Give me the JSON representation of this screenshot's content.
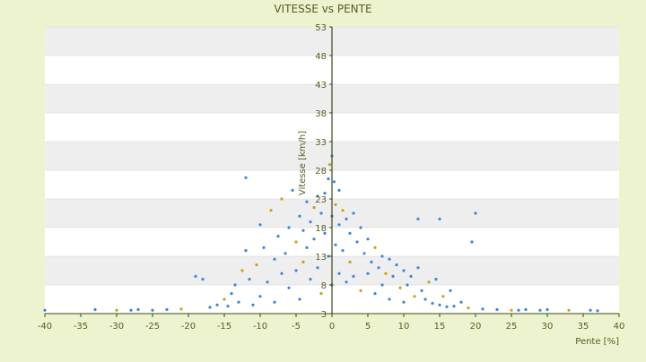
{
  "chart_data": {
    "type": "scatter",
    "title": "VITESSE vs PENTE",
    "xlabel": "Pente [%]",
    "ylabel": "Vitesse [km/h]",
    "xlim": [
      -40,
      40
    ],
    "ylim": [
      3,
      53
    ],
    "xticks": [
      -40,
      -35,
      -30,
      -25,
      -20,
      -15,
      -10,
      -5,
      0,
      5,
      10,
      15,
      20,
      25,
      30,
      35,
      40
    ],
    "yticks": [
      3,
      8,
      13,
      18,
      23,
      28,
      33,
      38,
      43,
      48,
      53
    ],
    "grid": "horizontal alternating bands",
    "legend": "none",
    "colors": {
      "page_background": "#eef3cf",
      "plot_background": "#ffffff",
      "band": "#eeeeee",
      "points_primary": "#3f87d6",
      "points_secondary": "#c8a21a",
      "axis": "#3b4a17",
      "text": "#5a5a20"
    },
    "series": [
      {
        "values_note": "",
        "points": [
          [
            -40,
            3.6
          ],
          [
            -33,
            3.7
          ],
          [
            -30,
            3.6
          ],
          [
            -28,
            3.6
          ],
          [
            -27,
            3.7
          ],
          [
            -25,
            3.6
          ],
          [
            -23,
            3.7
          ],
          [
            -21,
            3.8
          ],
          [
            -19,
            9.5
          ],
          [
            -18,
            9.0
          ],
          [
            -17,
            4.1
          ],
          [
            -16,
            4.5
          ],
          [
            -15,
            5.5
          ],
          [
            -14.5,
            4.3
          ],
          [
            -14,
            6.5
          ],
          [
            -13.5,
            8.0
          ],
          [
            -13,
            5.0
          ],
          [
            -12.5,
            10.5
          ],
          [
            -12,
            14.0
          ],
          [
            -12,
            26.7
          ],
          [
            -11.5,
            9.0
          ],
          [
            -11,
            4.5
          ],
          [
            -10.5,
            11.5
          ],
          [
            -10,
            18.5
          ],
          [
            -10,
            6.0
          ],
          [
            -9.5,
            14.5
          ],
          [
            -9,
            8.5
          ],
          [
            -8.5,
            21.0
          ],
          [
            -8,
            12.5
          ],
          [
            -8,
            5.0
          ],
          [
            -7.5,
            16.5
          ],
          [
            -7,
            10.0
          ],
          [
            -7,
            23.0
          ],
          [
            -6.5,
            13.5
          ],
          [
            -6,
            18.0
          ],
          [
            -6,
            7.5
          ],
          [
            -5.5,
            24.5
          ],
          [
            -5,
            15.5
          ],
          [
            -5,
            10.5
          ],
          [
            -4.5,
            20.0
          ],
          [
            -4.5,
            5.5
          ],
          [
            -4,
            17.5
          ],
          [
            -4,
            12.0
          ],
          [
            -3.5,
            22.5
          ],
          [
            -3.5,
            14.5
          ],
          [
            -3,
            19.0
          ],
          [
            -3,
            9.0
          ],
          [
            -2.5,
            21.5
          ],
          [
            -2.5,
            16.0
          ],
          [
            -2,
            23.5
          ],
          [
            -2,
            11.0
          ],
          [
            -1.5,
            20.5
          ],
          [
            -1.5,
            6.5
          ],
          [
            -1,
            24.0
          ],
          [
            -1,
            17.0
          ],
          [
            -0.5,
            26.5
          ],
          [
            -0.5,
            13.0
          ],
          [
            -0.3,
            29.0
          ],
          [
            0,
            30.5
          ],
          [
            0,
            20.0
          ],
          [
            0,
            8.0
          ],
          [
            0.3,
            26.0
          ],
          [
            0.5,
            22.0
          ],
          [
            0.5,
            15.0
          ],
          [
            1,
            24.5
          ],
          [
            1,
            18.5
          ],
          [
            1,
            10.0
          ],
          [
            1.5,
            21.0
          ],
          [
            1.5,
            14.0
          ],
          [
            2,
            19.5
          ],
          [
            2,
            8.5
          ],
          [
            2.5,
            17.0
          ],
          [
            2.5,
            12.0
          ],
          [
            3,
            20.5
          ],
          [
            3,
            9.5
          ],
          [
            3.5,
            15.5
          ],
          [
            4,
            18.0
          ],
          [
            4,
            7.0
          ],
          [
            4.5,
            13.5
          ],
          [
            5,
            16.0
          ],
          [
            5,
            10.0
          ],
          [
            5.5,
            12.0
          ],
          [
            6,
            14.5
          ],
          [
            6,
            6.5
          ],
          [
            6.5,
            11.0
          ],
          [
            7,
            13.0
          ],
          [
            7,
            8.0
          ],
          [
            7.5,
            10.0
          ],
          [
            8,
            12.5
          ],
          [
            8,
            5.5
          ],
          [
            8.5,
            9.5
          ],
          [
            9,
            11.5
          ],
          [
            9.5,
            7.5
          ],
          [
            10,
            10.5
          ],
          [
            10,
            5.0
          ],
          [
            10.5,
            8.0
          ],
          [
            11,
            9.5
          ],
          [
            11.5,
            6.0
          ],
          [
            12,
            19.5
          ],
          [
            12,
            11.0
          ],
          [
            12.5,
            7.0
          ],
          [
            13,
            5.5
          ],
          [
            13.5,
            8.5
          ],
          [
            14,
            4.8
          ],
          [
            14.5,
            9.0
          ],
          [
            15,
            4.5
          ],
          [
            15,
            19.5
          ],
          [
            15.5,
            6.0
          ],
          [
            16,
            4.2
          ],
          [
            16.5,
            7.0
          ],
          [
            17,
            4.3
          ],
          [
            18,
            5.0
          ],
          [
            19,
            4.0
          ],
          [
            19.5,
            15.5
          ],
          [
            20,
            20.5
          ],
          [
            21,
            3.8
          ],
          [
            23,
            3.7
          ],
          [
            25,
            3.6
          ],
          [
            26,
            3.6
          ],
          [
            27,
            3.7
          ],
          [
            29,
            3.6
          ],
          [
            30,
            3.7
          ],
          [
            33,
            3.6
          ],
          [
            36,
            3.6
          ],
          [
            37,
            3.5
          ]
        ]
      }
    ]
  }
}
